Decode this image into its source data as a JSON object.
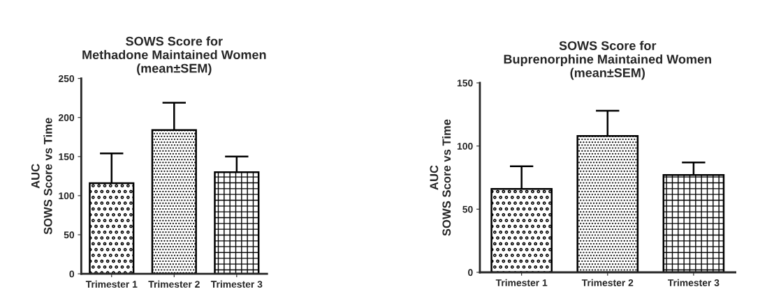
{
  "chart_data": [
    {
      "type": "bar",
      "title": "SOWS Score for\nMethadone Maintained Women\n(mean±SEM)",
      "ylabel": "AUC\nSOWS Score vs Time",
      "categories": [
        "Trimester 1",
        "Trimester 2",
        "Trimester 3"
      ],
      "values": [
        116,
        184,
        130
      ],
      "errors": [
        [
          116,
          154
        ],
        [
          184,
          219
        ],
        [
          130,
          150
        ]
      ],
      "colors": [
        "#000000",
        "#000000",
        "#000000"
      ],
      "ylim": [
        0,
        250
      ],
      "yticks": [
        0,
        50,
        100,
        150,
        200,
        250
      ],
      "grid": false
    },
    {
      "type": "bar",
      "title": "SOWS Score for\nBuprenorphine Maintained Women\n(mean±SEM)",
      "ylabel": "AUC\nSOWS Score vs Time",
      "categories": [
        "Trimester 1",
        "Trimester 2",
        "Trimester 3"
      ],
      "values": [
        66,
        108,
        77
      ],
      "errors": [
        [
          66,
          84
        ],
        [
          108,
          128
        ],
        [
          77,
          87
        ]
      ],
      "colors": [
        "#000000",
        "#000000",
        "#000000"
      ],
      "ylim": [
        0,
        150
      ],
      "yticks": [
        0,
        50,
        100,
        150
      ],
      "grid": false
    }
  ]
}
